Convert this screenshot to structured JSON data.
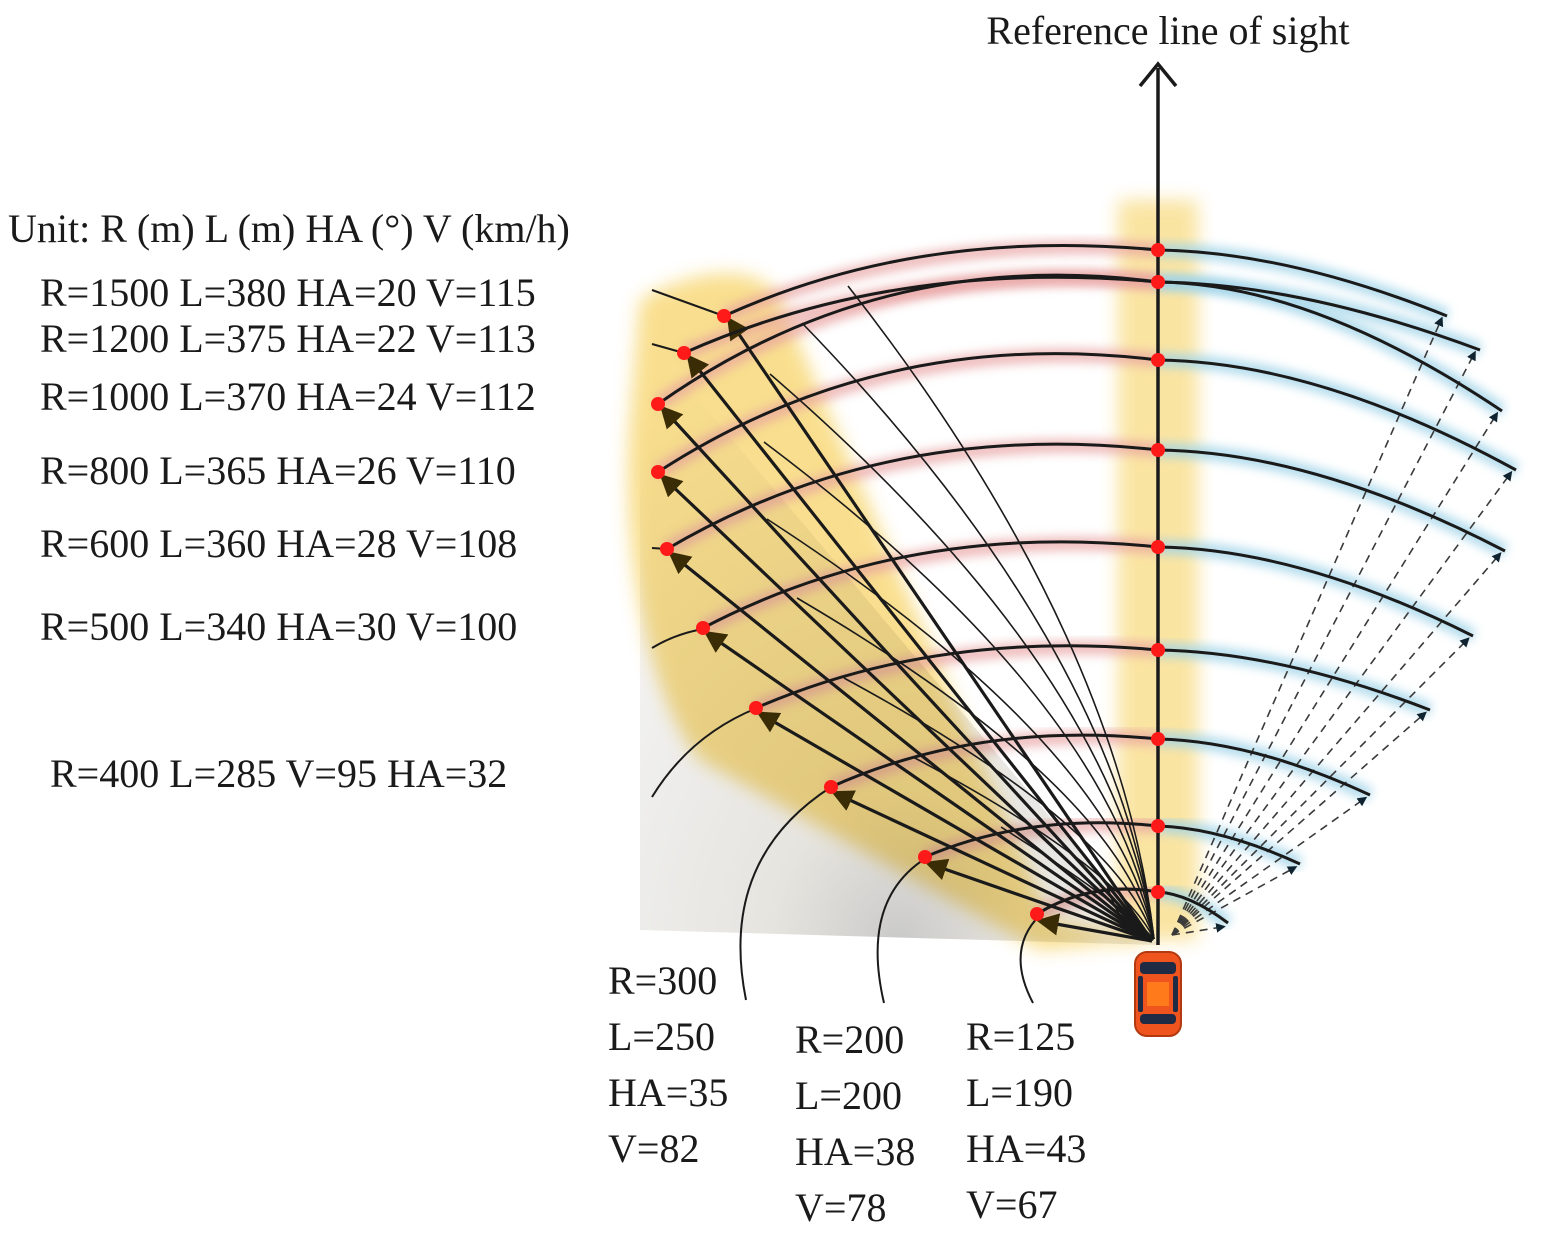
{
  "title": "Reference line of sight",
  "unit_note": "Unit: R (m) L (m) HA (°) V (km/h)",
  "colors": {
    "line": "#1a1a1a",
    "point": "#ff1a1a",
    "glow_left": "#f4c430",
    "glow_mid": "#e8a0a0",
    "glow_right": "#9fd3e8",
    "car_body": "#f0541e",
    "car_window": "#1f2a44",
    "car_roof": "#ff7a1a"
  },
  "curves": [
    {
      "R": 125,
      "L": 190,
      "HA": 43,
      "V": 67,
      "label": "R=125"
    },
    {
      "R": 200,
      "L": 200,
      "HA": 38,
      "V": 78,
      "label": "R=200"
    },
    {
      "R": 300,
      "L": 250,
      "HA": 35,
      "V": 82,
      "label": "R=300"
    },
    {
      "R": 400,
      "L": 285,
      "HA": 32,
      "V": 95,
      "label": "R=400 L=285 V=95 HA=32"
    },
    {
      "R": 500,
      "L": 340,
      "HA": 30,
      "V": 100,
      "label": "R=500 L=340 HA=30 V=100"
    },
    {
      "R": 600,
      "L": 360,
      "HA": 28,
      "V": 108,
      "label": "R=600 L=360 HA=28 V=108"
    },
    {
      "R": 800,
      "L": 365,
      "HA": 26,
      "V": 110,
      "label": "R=800 L=365 HA=26 V=110"
    },
    {
      "R": 1000,
      "L": 370,
      "HA": 24,
      "V": 112,
      "label": "R=1000 L=370 HA=24 V=112"
    },
    {
      "R": 1200,
      "L": 375,
      "HA": 22,
      "V": 113,
      "label": "R=1200 L=375 HA=22 V=113"
    },
    {
      "R": 1500,
      "L": 380,
      "HA": 20,
      "V": 115,
      "label": "R=1500 L=380 HA=20 V=115"
    }
  ],
  "bottom_labels": [
    {
      "lines": [
        "R=300",
        "L=250",
        "HA=35",
        "V=82"
      ]
    },
    {
      "lines": [
        "R=200",
        "L=200",
        "HA=38",
        "V=78"
      ]
    },
    {
      "lines": [
        "R=125",
        "L=190",
        "HA=43",
        "V=67"
      ]
    }
  ]
}
